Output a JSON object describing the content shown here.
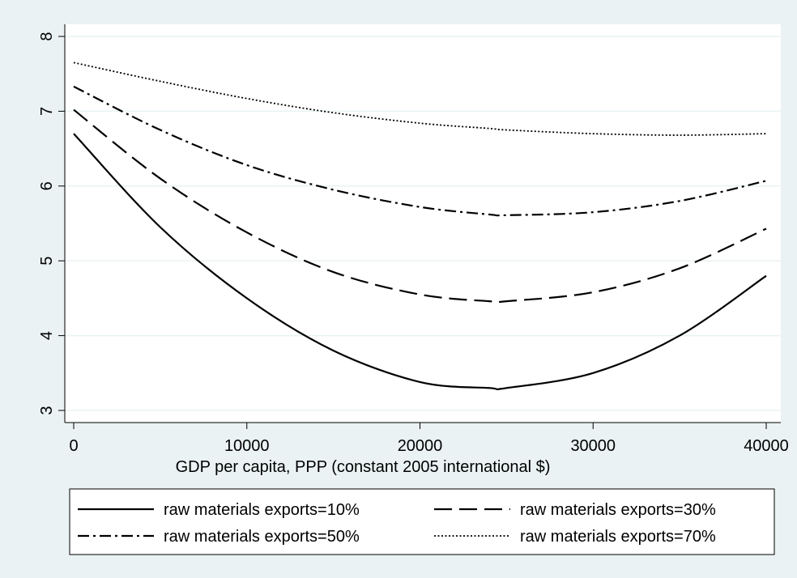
{
  "chart_data": {
    "type": "line",
    "title": "",
    "xlabel": "GDP per capita, PPP (constant 2005 international $)",
    "ylabel": "",
    "xlim": [
      0,
      40000
    ],
    "ylim": [
      3,
      8
    ],
    "xticks": [
      0,
      10000,
      20000,
      30000,
      40000
    ],
    "yticks": [
      3,
      4,
      5,
      6,
      7,
      8
    ],
    "grid": "horizontal",
    "legend_position": "bottom",
    "x": [
      0,
      5000,
      10000,
      15000,
      20000,
      24000,
      25000,
      30000,
      35000,
      40000
    ],
    "series": [
      {
        "name": "raw materials exports=10%",
        "style": "solid",
        "values": [
          6.7,
          5.45,
          4.5,
          3.8,
          3.38,
          3.3,
          3.3,
          3.5,
          4.0,
          4.8
        ]
      },
      {
        "name": "raw materials exports=30%",
        "style": "longdash",
        "values": [
          7.02,
          6.1,
          5.38,
          4.85,
          4.55,
          4.46,
          4.46,
          4.58,
          4.9,
          5.43
        ]
      },
      {
        "name": "raw materials exports=50%",
        "style": "dashdot",
        "values": [
          7.33,
          6.75,
          6.28,
          5.95,
          5.72,
          5.62,
          5.61,
          5.65,
          5.8,
          6.07
        ]
      },
      {
        "name": "raw materials exports=70%",
        "style": "dotted",
        "values": [
          7.65,
          7.4,
          7.17,
          6.98,
          6.84,
          6.77,
          6.75,
          6.7,
          6.68,
          6.7
        ]
      }
    ]
  }
}
